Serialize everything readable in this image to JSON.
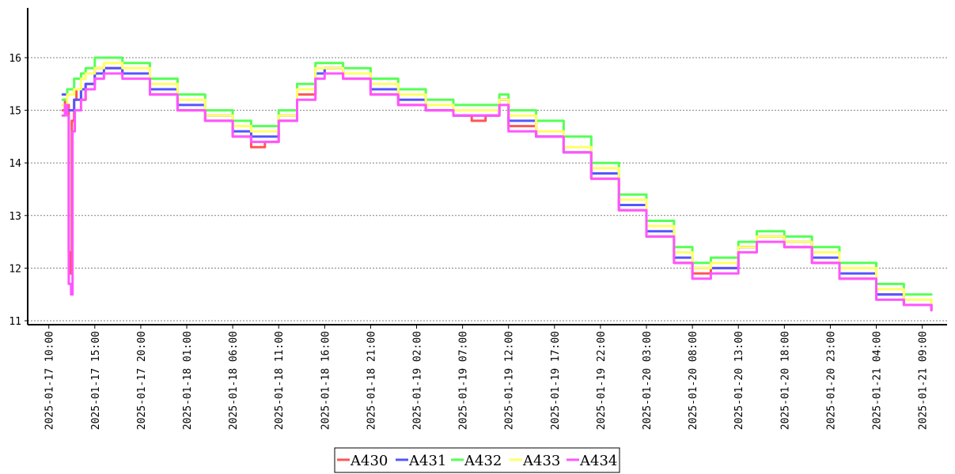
{
  "chart_data": {
    "type": "line",
    "title": "",
    "xlabel": "",
    "ylabel": "",
    "ylim": [
      11,
      17
    ],
    "xlim": [
      "2025-01-17 07:42",
      "2025-01-21 11:42"
    ],
    "y_ticks": [
      11,
      12,
      13,
      14,
      15,
      16
    ],
    "x_ticks": [
      "2025-01-17 10:00",
      "2025-01-17 15:00",
      "2025-01-17 20:00",
      "2025-01-18 01:00",
      "2025-01-18 06:00",
      "2025-01-18 11:00",
      "2025-01-18 16:00",
      "2025-01-18 21:00",
      "2025-01-19 02:00",
      "2025-01-19 07:00",
      "2025-01-19 12:00",
      "2025-01-19 17:00",
      "2025-01-19 22:00",
      "2025-01-20 03:00",
      "2025-01-20 08:00",
      "2025-01-20 13:00",
      "2025-01-20 18:00",
      "2025-01-20 23:00",
      "2025-01-21 04:00",
      "2025-01-21 09:00"
    ],
    "grid": "horizontal dotted",
    "legend_position": "bottom-center",
    "series": [
      {
        "name": "A430",
        "color": "#ff5555",
        "x": [
          "2025-01-17 11:30",
          "2025-01-17 11:45",
          "2025-01-17 12:00",
          "2025-01-17 12:10",
          "2025-01-17 12:20",
          "2025-01-17 12:30",
          "2025-01-17 12:45",
          "2025-01-17 13:00",
          "2025-01-17 13:30",
          "2025-01-17 14:00",
          "2025-01-17 15:00",
          "2025-01-17 16:00",
          "2025-01-17 18:00",
          "2025-01-17 21:00",
          "2025-01-18 00:00",
          "2025-01-18 03:00",
          "2025-01-18 06:00",
          "2025-01-18 08:00",
          "2025-01-18 09:30",
          "2025-01-18 11:00",
          "2025-01-18 13:00",
          "2025-01-18 15:00",
          "2025-01-18 16:00",
          "2025-01-18 18:00",
          "2025-01-18 21:00",
          "2025-01-19 00:00",
          "2025-01-19 03:00",
          "2025-01-19 06:00",
          "2025-01-19 08:00",
          "2025-01-19 09:30",
          "2025-01-19 11:00",
          "2025-01-19 12:00",
          "2025-01-19 15:00",
          "2025-01-19 18:00",
          "2025-01-19 21:00",
          "2025-01-20 00:00",
          "2025-01-20 03:00",
          "2025-01-20 06:00",
          "2025-01-20 08:00",
          "2025-01-20 10:00",
          "2025-01-20 13:00",
          "2025-01-20 15:00",
          "2025-01-20 18:00",
          "2025-01-20 21:00",
          "2025-01-21 00:00",
          "2025-01-21 04:00",
          "2025-01-21 07:00",
          "2025-01-21 10:00"
        ],
        "values": [
          15.0,
          15.2,
          15.1,
          12.3,
          11.9,
          14.8,
          15.2,
          15.4,
          15.2,
          15.5,
          15.8,
          15.8,
          15.7,
          15.3,
          15.0,
          14.8,
          14.5,
          14.3,
          14.4,
          14.8,
          15.3,
          15.7,
          15.8,
          15.6,
          15.3,
          15.1,
          15.0,
          14.9,
          14.8,
          14.9,
          15.2,
          14.7,
          14.5,
          14.2,
          13.7,
          13.1,
          12.6,
          12.1,
          11.9,
          12.0,
          12.4,
          12.6,
          12.4,
          12.1,
          11.8,
          11.5,
          11.3,
          11.2
        ]
      },
      {
        "name": "A431",
        "color": "#5555ff",
        "x": [
          "2025-01-17 11:30",
          "2025-01-17 12:00",
          "2025-01-17 12:45",
          "2025-01-17 13:30",
          "2025-01-17 14:00",
          "2025-01-17 15:00",
          "2025-01-17 16:00",
          "2025-01-17 18:00",
          "2025-01-17 21:00",
          "2025-01-18 00:00",
          "2025-01-18 03:00",
          "2025-01-18 06:00",
          "2025-01-18 08:00",
          "2025-01-18 09:30",
          "2025-01-18 11:00",
          "2025-01-18 13:00",
          "2025-01-18 15:00",
          "2025-01-18 16:00",
          "2025-01-18 18:00",
          "2025-01-18 21:00",
          "2025-01-19 00:00",
          "2025-01-19 03:00",
          "2025-01-19 06:00",
          "2025-01-19 08:00",
          "2025-01-19 09:30",
          "2025-01-19 11:00",
          "2025-01-19 12:00",
          "2025-01-19 15:00",
          "2025-01-19 18:00",
          "2025-01-19 21:00",
          "2025-01-20 00:00",
          "2025-01-20 03:00",
          "2025-01-20 06:00",
          "2025-01-20 08:00",
          "2025-01-20 10:00",
          "2025-01-20 13:00",
          "2025-01-20 15:00",
          "2025-01-20 18:00",
          "2025-01-20 21:00",
          "2025-01-21 00:00",
          "2025-01-21 04:00",
          "2025-01-21 07:00",
          "2025-01-21 10:00"
        ],
        "values": [
          15.3,
          15.0,
          15.2,
          15.4,
          15.5,
          15.7,
          15.8,
          15.7,
          15.4,
          15.1,
          14.9,
          14.6,
          14.5,
          14.5,
          14.9,
          15.4,
          15.7,
          15.8,
          15.7,
          15.4,
          15.2,
          15.0,
          14.9,
          14.9,
          14.9,
          15.2,
          14.8,
          14.5,
          14.2,
          13.8,
          13.2,
          12.7,
          12.2,
          12.0,
          12.0,
          12.4,
          12.6,
          12.5,
          12.2,
          11.9,
          11.5,
          11.3,
          11.3
        ]
      },
      {
        "name": "A432",
        "color": "#55ff55",
        "x": [
          "2025-01-17 11:30",
          "2025-01-17 12:00",
          "2025-01-17 12:45",
          "2025-01-17 13:30",
          "2025-01-17 14:00",
          "2025-01-17 15:00",
          "2025-01-17 16:00",
          "2025-01-17 18:00",
          "2025-01-17 21:00",
          "2025-01-18 00:00",
          "2025-01-18 03:00",
          "2025-01-18 06:00",
          "2025-01-18 08:00",
          "2025-01-18 09:30",
          "2025-01-18 11:00",
          "2025-01-18 13:00",
          "2025-01-18 15:00",
          "2025-01-18 16:00",
          "2025-01-18 18:00",
          "2025-01-18 21:00",
          "2025-01-19 00:00",
          "2025-01-19 03:00",
          "2025-01-19 06:00",
          "2025-01-19 08:00",
          "2025-01-19 09:30",
          "2025-01-19 11:00",
          "2025-01-19 12:00",
          "2025-01-19 15:00",
          "2025-01-19 18:00",
          "2025-01-19 21:00",
          "2025-01-20 00:00",
          "2025-01-20 03:00",
          "2025-01-20 06:00",
          "2025-01-20 08:00",
          "2025-01-20 10:00",
          "2025-01-20 13:00",
          "2025-01-20 15:00",
          "2025-01-20 18:00",
          "2025-01-20 21:00",
          "2025-01-21 00:00",
          "2025-01-21 04:00",
          "2025-01-21 07:00",
          "2025-01-21 10:00"
        ],
        "values": [
          15.2,
          15.4,
          15.6,
          15.7,
          15.8,
          16.0,
          16.0,
          15.9,
          15.6,
          15.3,
          15.0,
          14.8,
          14.7,
          14.7,
          15.0,
          15.5,
          15.9,
          15.9,
          15.8,
          15.6,
          15.4,
          15.2,
          15.1,
          15.1,
          15.1,
          15.3,
          15.0,
          14.8,
          14.5,
          14.0,
          13.4,
          12.9,
          12.4,
          12.1,
          12.2,
          12.5,
          12.7,
          12.6,
          12.4,
          12.1,
          11.7,
          11.5,
          11.5
        ]
      },
      {
        "name": "A433",
        "color": "#ffff66",
        "x": [
          "2025-01-17 11:30",
          "2025-01-17 12:00",
          "2025-01-17 12:45",
          "2025-01-17 13:30",
          "2025-01-17 14:00",
          "2025-01-17 15:00",
          "2025-01-17 16:00",
          "2025-01-17 18:00",
          "2025-01-17 21:00",
          "2025-01-18 00:00",
          "2025-01-18 03:00",
          "2025-01-18 06:00",
          "2025-01-18 08:00",
          "2025-01-18 09:30",
          "2025-01-18 11:00",
          "2025-01-18 13:00",
          "2025-01-18 15:00",
          "2025-01-18 16:00",
          "2025-01-18 18:00",
          "2025-01-18 21:00",
          "2025-01-19 00:00",
          "2025-01-19 03:00",
          "2025-01-19 06:00",
          "2025-01-19 08:00",
          "2025-01-19 09:30",
          "2025-01-19 11:00",
          "2025-01-19 12:00",
          "2025-01-19 15:00",
          "2025-01-19 18:00",
          "2025-01-19 21:00",
          "2025-01-20 00:00",
          "2025-01-20 03:00",
          "2025-01-20 06:00",
          "2025-01-20 08:00",
          "2025-01-20 10:00",
          "2025-01-20 13:00",
          "2025-01-20 15:00",
          "2025-01-20 18:00",
          "2025-01-20 21:00",
          "2025-01-21 00:00",
          "2025-01-21 04:00",
          "2025-01-21 07:00",
          "2025-01-21 10:00"
        ],
        "values": [
          15.1,
          15.3,
          15.4,
          15.6,
          15.7,
          15.8,
          15.9,
          15.8,
          15.5,
          15.2,
          14.9,
          14.7,
          14.6,
          14.6,
          14.9,
          15.4,
          15.8,
          15.8,
          15.7,
          15.5,
          15.3,
          15.1,
          15.0,
          15.0,
          15.0,
          15.2,
          14.9,
          14.6,
          14.3,
          13.9,
          13.3,
          12.8,
          12.3,
          12.0,
          12.1,
          12.4,
          12.6,
          12.5,
          12.3,
          12.0,
          11.6,
          11.4,
          11.3
        ]
      },
      {
        "name": "A434",
        "color": "#ff55ff",
        "x": [
          "2025-01-17 11:30",
          "2025-01-17 11:45",
          "2025-01-17 12:00",
          "2025-01-17 12:10",
          "2025-01-17 12:25",
          "2025-01-17 12:35",
          "2025-01-17 12:50",
          "2025-01-17 13:30",
          "2025-01-17 14:00",
          "2025-01-17 15:00",
          "2025-01-17 16:00",
          "2025-01-17 18:00",
          "2025-01-17 21:00",
          "2025-01-18 00:00",
          "2025-01-18 03:00",
          "2025-01-18 06:00",
          "2025-01-18 08:00",
          "2025-01-18 09:30",
          "2025-01-18 11:00",
          "2025-01-18 13:00",
          "2025-01-18 15:00",
          "2025-01-18 16:00",
          "2025-01-18 18:00",
          "2025-01-18 21:00",
          "2025-01-19 00:00",
          "2025-01-19 03:00",
          "2025-01-19 06:00",
          "2025-01-19 08:00",
          "2025-01-19 09:30",
          "2025-01-19 11:00",
          "2025-01-19 12:00",
          "2025-01-19 15:00",
          "2025-01-19 18:00",
          "2025-01-19 21:00",
          "2025-01-20 00:00",
          "2025-01-20 03:00",
          "2025-01-20 06:00",
          "2025-01-20 08:00",
          "2025-01-20 10:00",
          "2025-01-20 13:00",
          "2025-01-20 15:00",
          "2025-01-20 18:00",
          "2025-01-20 21:00",
          "2025-01-21 00:00",
          "2025-01-21 04:00",
          "2025-01-21 07:00",
          "2025-01-21 10:00"
        ],
        "values": [
          14.9,
          15.1,
          14.9,
          11.7,
          11.5,
          14.6,
          15.0,
          15.2,
          15.4,
          15.6,
          15.7,
          15.6,
          15.3,
          15.0,
          14.8,
          14.5,
          14.4,
          14.4,
          14.8,
          15.2,
          15.6,
          15.7,
          15.6,
          15.3,
          15.1,
          15.0,
          14.9,
          14.9,
          14.9,
          15.1,
          14.6,
          14.5,
          14.2,
          13.7,
          13.1,
          12.6,
          12.1,
          11.8,
          11.9,
          12.3,
          12.5,
          12.4,
          12.1,
          11.8,
          11.4,
          11.3,
          11.2
        ]
      }
    ]
  }
}
